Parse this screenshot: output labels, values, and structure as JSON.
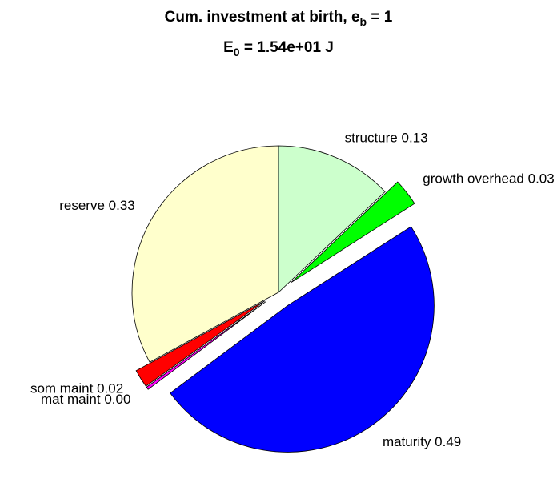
{
  "chart_data": {
    "type": "pie",
    "title": [
      "Cum. investment at birth, e",
      "b",
      " = 1"
    ],
    "subtitle": [
      "E",
      "0",
      " = 1.54e+01 J"
    ],
    "categories": [
      "structure",
      "growth overhead",
      "maturity",
      "mat maint",
      "som maint",
      "reserve"
    ],
    "values": [
      0.13,
      0.03,
      0.49,
      0.003,
      0.02,
      0.33
    ],
    "value_labels": [
      "0.13",
      "0.03",
      "0.49",
      "0.00",
      "0.02",
      "0.33"
    ],
    "colors": [
      "#ccffcc",
      "#00ff00",
      "#0000ff",
      "#ff00ff",
      "#ff0000",
      "#ffffcc"
    ],
    "explode": [
      false,
      true,
      true,
      true,
      true,
      false
    ]
  }
}
